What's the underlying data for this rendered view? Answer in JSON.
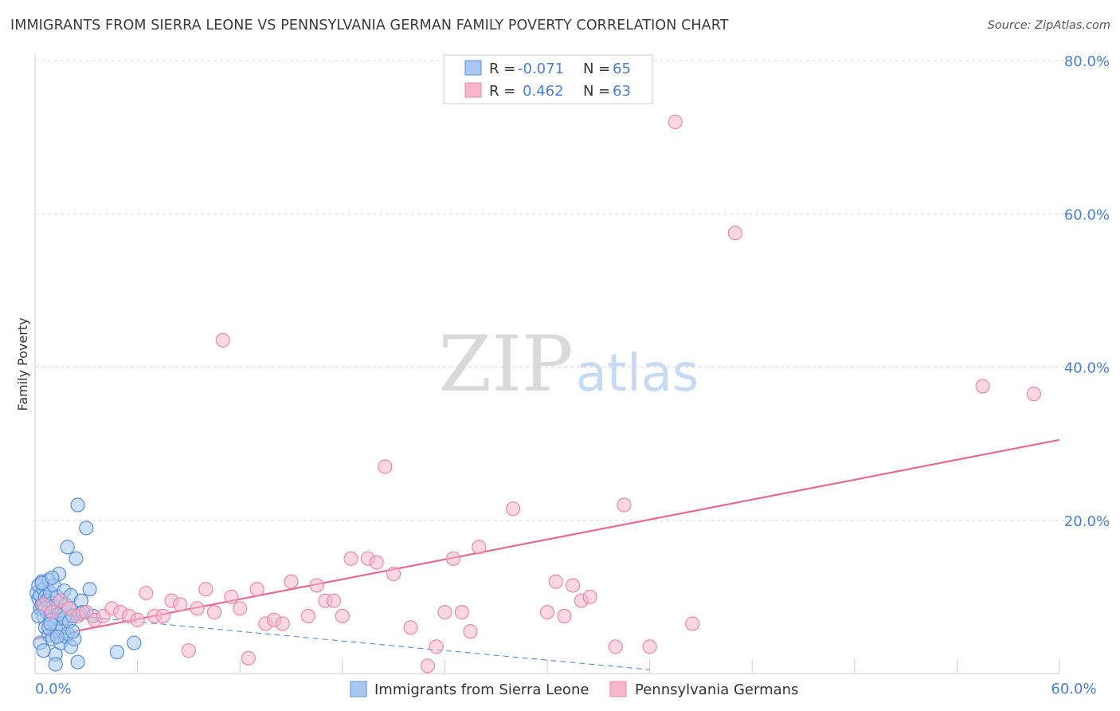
{
  "title": "IMMIGRANTS FROM SIERRA LEONE VS PENNSYLVANIA GERMAN FAMILY POVERTY CORRELATION CHART",
  "source": "Source: ZipAtlas.com",
  "watermark": {
    "zip": "ZIP",
    "atlas": "atlas"
  },
  "colors": {
    "blue_fill": "#a8c8f0",
    "blue_stroke": "#5a8fd6",
    "blue_line": "#4a7fd0",
    "pink_fill": "#f6b6cc",
    "pink_stroke": "#e98aaa",
    "pink_line": "#e26b96",
    "axis_label": "#4a7fd0",
    "grid": "#d8d8d8"
  },
  "legend": {
    "rows": [
      {
        "r_label": "R =",
        "r_value": "-0.071",
        "n_label": "N =",
        "n_value": "65",
        "series": "blue"
      },
      {
        "r_label": "R =",
        "r_value": "0.462",
        "n_label": "N =",
        "n_value": "63",
        "series": "pink"
      }
    ]
  },
  "chart_data": {
    "type": "scatter",
    "ylabel": "Family Poverty",
    "xlabel": "",
    "xlim": [
      0,
      60
    ],
    "ylim": [
      0,
      80
    ],
    "x_tick_labels": {
      "0": "0.0%",
      "60": "60.0%"
    },
    "y_ticks": [
      20,
      40,
      60,
      80
    ],
    "y_tick_labels": [
      "20.0%",
      "40.0%",
      "60.0%",
      "80.0%"
    ],
    "legend_bottom": [
      "Immigrants from Sierra Leone",
      "Pennsylvania Germans"
    ],
    "series": [
      {
        "name": "Immigrants from Sierra Leone",
        "color": "blue",
        "trend": {
          "x0": 0,
          "y0": 8.0,
          "x1": 36,
          "y1": 0.5,
          "style": "dashed",
          "solid_until": 4
        },
        "points": [
          [
            0.1,
            10.5
          ],
          [
            0.2,
            9.8
          ],
          [
            0.2,
            11.5
          ],
          [
            0.3,
            8.5
          ],
          [
            0.3,
            10.2
          ],
          [
            0.4,
            12.0
          ],
          [
            0.4,
            9.0
          ],
          [
            0.5,
            7.5
          ],
          [
            0.5,
            11.0
          ],
          [
            0.6,
            10.0
          ],
          [
            0.6,
            6.0
          ],
          [
            0.7,
            9.5
          ],
          [
            0.7,
            8.0
          ],
          [
            0.8,
            12.2
          ],
          [
            0.8,
            5.0
          ],
          [
            0.9,
            10.5
          ],
          [
            0.9,
            7.0
          ],
          [
            1.0,
            9.2
          ],
          [
            1.0,
            4.5
          ],
          [
            1.1,
            11.5
          ],
          [
            1.1,
            8.8
          ],
          [
            1.2,
            6.5
          ],
          [
            1.2,
            2.5
          ],
          [
            1.3,
            10.0
          ],
          [
            1.3,
            5.5
          ],
          [
            1.4,
            13.0
          ],
          [
            1.4,
            7.8
          ],
          [
            1.5,
            9.5
          ],
          [
            1.5,
            4.0
          ],
          [
            1.6,
            8.2
          ],
          [
            1.6,
            6.0
          ],
          [
            1.7,
            10.8
          ],
          [
            1.7,
            7.2
          ],
          [
            1.8,
            4.8
          ],
          [
            1.8,
            9.0
          ],
          [
            1.9,
            5.2
          ],
          [
            1.9,
            16.5
          ],
          [
            2.0,
            8.5
          ],
          [
            2.0,
            6.8
          ],
          [
            2.1,
            3.5
          ],
          [
            2.1,
            10.2
          ],
          [
            2.2,
            7.5
          ],
          [
            2.3,
            4.5
          ],
          [
            2.4,
            15.0
          ],
          [
            2.5,
            22.0
          ],
          [
            2.6,
            7.8
          ],
          [
            2.7,
            9.5
          ],
          [
            2.8,
            8.0
          ],
          [
            3.0,
            19.0
          ],
          [
            3.2,
            11.0
          ],
          [
            3.4,
            7.5
          ],
          [
            0.3,
            4.0
          ],
          [
            0.5,
            3.0
          ],
          [
            0.8,
            6.0
          ],
          [
            1.2,
            1.2
          ],
          [
            2.5,
            1.5
          ],
          [
            4.8,
            2.8
          ],
          [
            5.8,
            4.0
          ],
          [
            0.4,
            11.8
          ],
          [
            0.6,
            8.5
          ],
          [
            1.0,
            12.5
          ],
          [
            1.3,
            4.8
          ],
          [
            0.2,
            7.5
          ],
          [
            2.2,
            5.5
          ],
          [
            0.9,
            6.5
          ]
        ]
      },
      {
        "name": "Pennsylvania Germans",
        "color": "pink",
        "trend": {
          "x0": 0,
          "y0": 4.5,
          "x1": 60,
          "y1": 30.5,
          "style": "solid"
        },
        "points": [
          [
            0.5,
            9.0
          ],
          [
            1.0,
            8.0
          ],
          [
            1.5,
            9.5
          ],
          [
            2.0,
            8.5
          ],
          [
            2.5,
            7.5
          ],
          [
            3.0,
            8.0
          ],
          [
            3.5,
            7.0
          ],
          [
            4.0,
            7.5
          ],
          [
            4.5,
            8.5
          ],
          [
            5.0,
            8.0
          ],
          [
            5.5,
            7.5
          ],
          [
            6.0,
            7.0
          ],
          [
            6.5,
            10.5
          ],
          [
            7.0,
            7.5
          ],
          [
            7.5,
            7.5
          ],
          [
            8.0,
            9.5
          ],
          [
            8.5,
            9.0
          ],
          [
            9.0,
            3.0
          ],
          [
            9.5,
            8.5
          ],
          [
            10.0,
            11.0
          ],
          [
            10.5,
            8.0
          ],
          [
            11.0,
            43.5
          ],
          [
            11.5,
            10.0
          ],
          [
            12.0,
            8.5
          ],
          [
            12.5,
            2.0
          ],
          [
            13.0,
            11.0
          ],
          [
            13.5,
            6.5
          ],
          [
            14.0,
            7.0
          ],
          [
            14.5,
            6.5
          ],
          [
            15.0,
            12.0
          ],
          [
            16.0,
            7.5
          ],
          [
            16.5,
            11.5
          ],
          [
            17.0,
            9.5
          ],
          [
            17.5,
            9.5
          ],
          [
            18.0,
            7.5
          ],
          [
            18.5,
            15.0
          ],
          [
            19.5,
            15.0
          ],
          [
            20.0,
            14.5
          ],
          [
            20.5,
            27.0
          ],
          [
            21.0,
            13.0
          ],
          [
            22.0,
            6.0
          ],
          [
            23.0,
            1.0
          ],
          [
            23.5,
            3.5
          ],
          [
            24.0,
            8.0
          ],
          [
            24.5,
            15.0
          ],
          [
            25.0,
            8.0
          ],
          [
            25.5,
            5.5
          ],
          [
            26.0,
            16.5
          ],
          [
            30.0,
            8.0
          ],
          [
            30.5,
            12.0
          ],
          [
            31.0,
            7.5
          ],
          [
            31.5,
            11.5
          ],
          [
            32.0,
            9.5
          ],
          [
            32.5,
            10.0
          ],
          [
            34.0,
            3.5
          ],
          [
            34.5,
            22.0
          ],
          [
            36.0,
            3.5
          ],
          [
            37.5,
            72.0
          ],
          [
            38.5,
            6.5
          ],
          [
            41.0,
            57.5
          ],
          [
            55.5,
            37.5
          ],
          [
            58.5,
            36.5
          ],
          [
            28.0,
            21.5
          ]
        ]
      }
    ]
  }
}
